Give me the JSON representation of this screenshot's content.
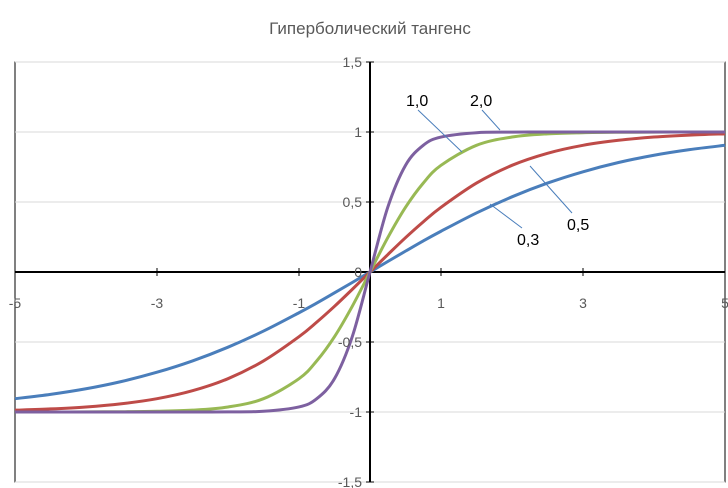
{
  "chart_data": {
    "type": "line",
    "title": "Гиперболический тангенс",
    "xlim": [
      -5,
      5
    ],
    "ylim": [
      -1.5,
      1.5
    ],
    "x_ticks": [
      -5,
      -3,
      -1,
      1,
      3,
      5
    ],
    "x_tick_labels": [
      "-5",
      "-3",
      "-1",
      "1",
      "3",
      "5"
    ],
    "y_ticks": [
      -1.5,
      -1,
      -0.5,
      0,
      0.5,
      1,
      1.5
    ],
    "y_tick_labels": [
      "-1,5",
      "-1",
      "-0,5",
      "0",
      "0,5",
      "1",
      "1,5"
    ],
    "grid": true,
    "legend": "none",
    "x": [
      -5,
      -4.5,
      -4,
      -3.5,
      -3,
      -2.5,
      -2,
      -1.5,
      -1,
      -0.75,
      -0.5,
      -0.25,
      0,
      0.25,
      0.5,
      0.75,
      1,
      1.5,
      2,
      2.5,
      3,
      3.5,
      4,
      4.5,
      5
    ],
    "series": [
      {
        "name": "0,3",
        "k": 0.3,
        "color": "#4a7ebb",
        "values": [
          -0.905,
          -0.874,
          -0.834,
          -0.782,
          -0.716,
          -0.635,
          -0.537,
          -0.422,
          -0.291,
          -0.222,
          -0.149,
          -0.075,
          0,
          0.075,
          0.149,
          0.222,
          0.291,
          0.422,
          0.537,
          0.635,
          0.716,
          0.782,
          0.834,
          0.874,
          0.905
        ]
      },
      {
        "name": "0,5",
        "k": 0.5,
        "color": "#be4b48",
        "values": [
          -0.987,
          -0.978,
          -0.964,
          -0.941,
          -0.905,
          -0.848,
          -0.762,
          -0.635,
          -0.462,
          -0.358,
          -0.245,
          -0.124,
          0,
          0.124,
          0.245,
          0.358,
          0.462,
          0.635,
          0.762,
          0.848,
          0.905,
          0.941,
          0.964,
          0.978,
          0.987
        ]
      },
      {
        "name": "1,0",
        "k": 1.0,
        "color": "#98b954",
        "values": [
          -1.0,
          -1.0,
          -0.999,
          -0.998,
          -0.995,
          -0.987,
          -0.964,
          -0.905,
          -0.762,
          -0.635,
          -0.462,
          -0.245,
          0,
          0.245,
          0.462,
          0.635,
          0.762,
          0.905,
          0.964,
          0.987,
          0.995,
          0.998,
          0.999,
          1.0,
          1.0
        ]
      },
      {
        "name": "2,0",
        "k": 2.0,
        "color": "#7d60a0",
        "values": [
          -1.0,
          -1.0,
          -1.0,
          -1.0,
          -1.0,
          -1.0,
          -0.999,
          -0.995,
          -0.964,
          -0.905,
          -0.762,
          -0.462,
          0,
          0.462,
          0.762,
          0.905,
          0.964,
          0.995,
          0.999,
          1.0,
          1.0,
          1.0,
          1.0,
          1.0,
          1.0
        ]
      }
    ],
    "annotations": [
      {
        "text": "1,0",
        "series": "1,0"
      },
      {
        "text": "2,0",
        "series": "2,0"
      },
      {
        "text": "0,5",
        "series": "0,5"
      },
      {
        "text": "0,3",
        "series": "0,3"
      }
    ]
  }
}
